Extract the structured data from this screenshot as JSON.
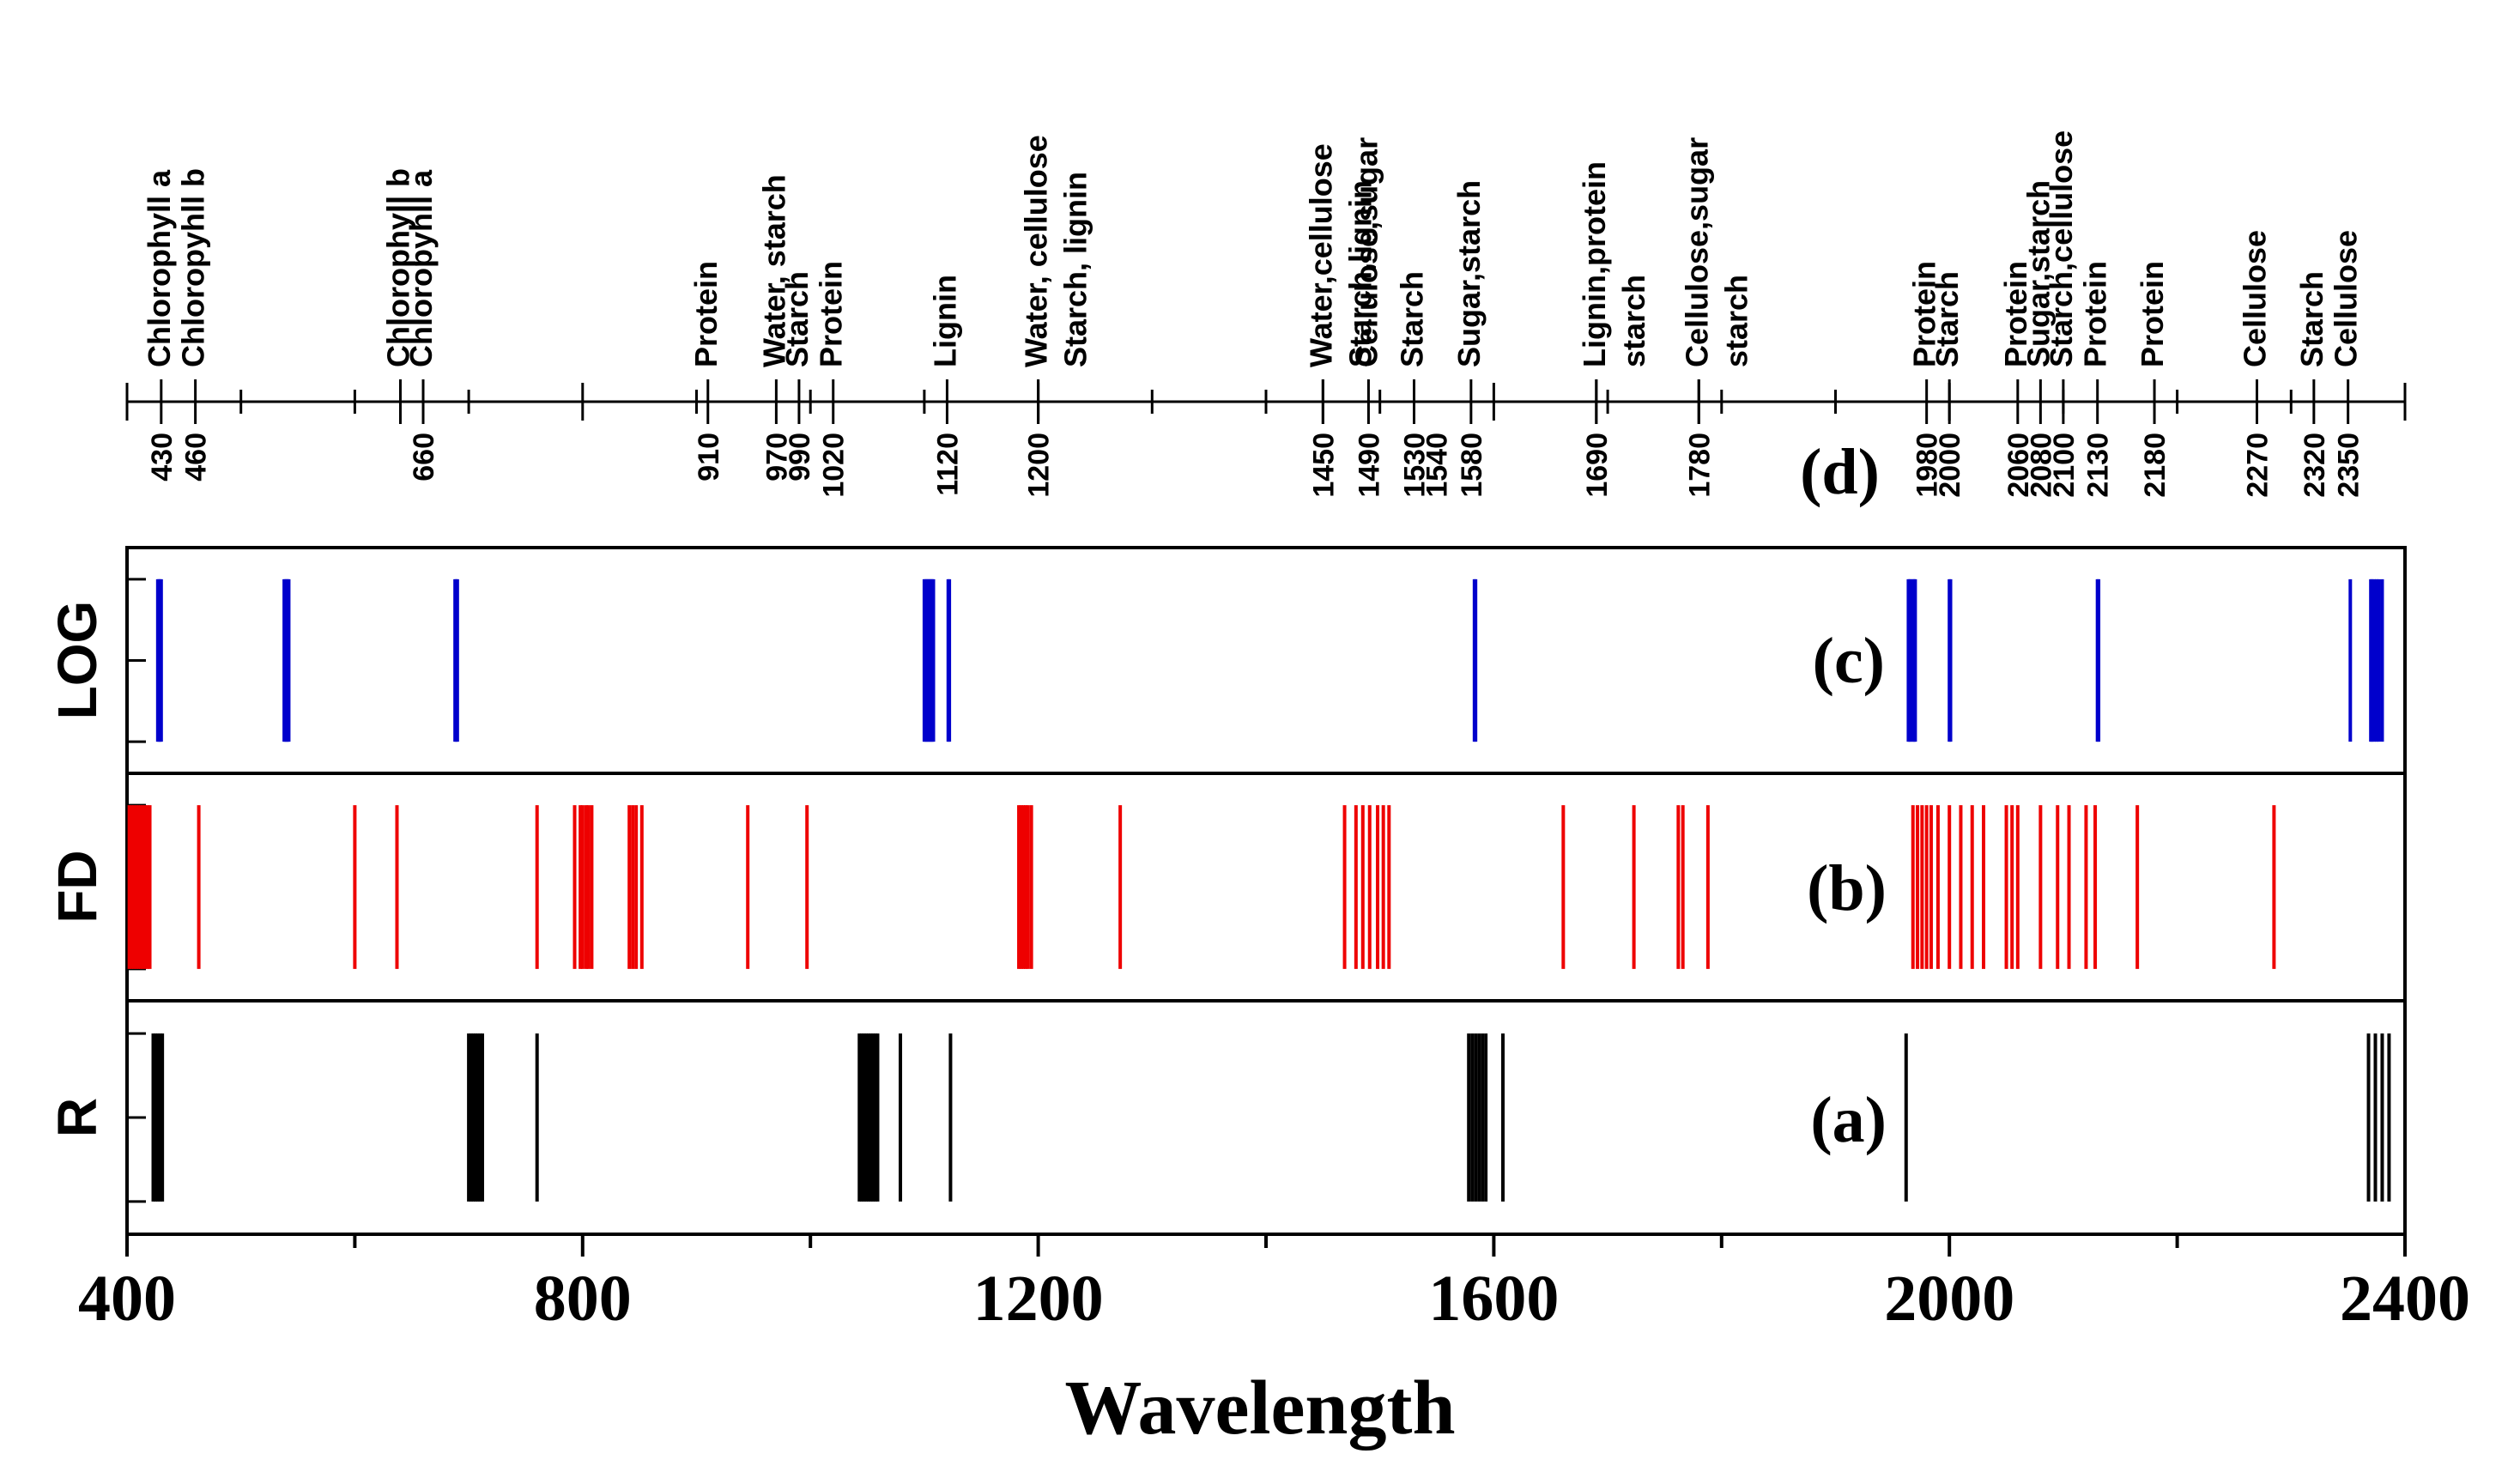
{
  "chart_data": {
    "type": "wavelength-band-plot",
    "xlim": [
      400,
      2400
    ],
    "xlabel": "Wavelength",
    "x_ticks": [
      400,
      800,
      1200,
      1600,
      2000,
      2400
    ],
    "annotations_panel": {
      "tag": "(d)",
      "entries": [
        {
          "wl": 430,
          "label": "Chlorophyll a"
        },
        {
          "wl": 460,
          "label": "Chloropyhll b"
        },
        {
          "wl": 640,
          "label": "Chlorophyll b"
        },
        {
          "wl": 660,
          "label": "Chloropyhll a"
        },
        {
          "wl": 910,
          "label": "Protein"
        },
        {
          "wl": 970,
          "label": "Water, starch"
        },
        {
          "wl": 990,
          "label": "Starch"
        },
        {
          "wl": 1020,
          "label": "Protein"
        },
        {
          "wl": 1120,
          "label": "Lignin"
        },
        {
          "wl": 1200,
          "label": "Water, cellulose"
        },
        {
          "wl": 1200,
          "label": "Starch, lignin"
        },
        {
          "wl": 1450,
          "label": "Water,cellulose"
        },
        {
          "wl": 1450,
          "label": "Starch,lignin"
        },
        {
          "wl": 1490,
          "label": "Cellulose,sugar"
        },
        {
          "wl": 1530,
          "label": "Starch"
        },
        {
          "wl": 1580,
          "label": "Sugar,starch"
        },
        {
          "wl": 1690,
          "label": "Lignin,protein"
        },
        {
          "wl": 1690,
          "label": "starch"
        },
        {
          "wl": 1780,
          "label": "Cellulose,sugar"
        },
        {
          "wl": 1780,
          "label": "starch"
        },
        {
          "wl": 1980,
          "label": "Protein"
        },
        {
          "wl": 2000,
          "label": "Starch"
        },
        {
          "wl": 2060,
          "label": "Protein"
        },
        {
          "wl": 2080,
          "label": "Sugar,starch"
        },
        {
          "wl": 2100,
          "label": "Starch,cellulose"
        },
        {
          "wl": 2130,
          "label": "Protein"
        },
        {
          "wl": 2180,
          "label": "Protein"
        },
        {
          "wl": 2270,
          "label": "Cellulose"
        },
        {
          "wl": 2320,
          "label": "Starch"
        },
        {
          "wl": 2350,
          "label": "Cellulose"
        }
      ],
      "wavelength_labels": [
        "430",
        "460",
        "660",
        "910",
        "970",
        "990",
        "1020",
        "1120",
        "1200",
        "1450",
        "1490",
        "1530",
        "1540",
        "1580",
        "1690",
        "1780",
        "1980",
        "2000",
        "2060",
        "2080",
        "2100",
        "2130",
        "2180",
        "2270",
        "2320",
        "2350"
      ]
    },
    "series": [
      {
        "name": "LOG",
        "tag": "(c)",
        "color": "#0000cc",
        "bands": [
          427,
          428,
          429,
          430,
          538,
          539,
          540,
          541,
          542,
          688,
          689,
          690,
          1100,
          1101,
          1102,
          1103,
          1104,
          1105,
          1106,
          1107,
          1108,
          1121,
          1122,
          1583,
          1584,
          1964,
          1965,
          1966,
          1968,
          1969,
          1970,
          2000,
          2001,
          2130,
          2131,
          2352,
          2370,
          2371,
          2373,
          2375,
          2377,
          2380
        ]
      },
      {
        "name": "FD",
        "tag": "(b)",
        "color": "#ee0000",
        "bands": [
          402,
          404,
          406,
          408,
          410,
          412,
          414,
          416,
          418,
          420,
          463,
          600,
          637,
          760,
          793,
          798,
          800,
          803,
          805,
          808,
          841,
          844,
          847,
          852,
          945,
          997,
          1183,
          1185,
          1187,
          1189,
          1191,
          1194,
          1272,
          1469,
          1479,
          1485,
          1491,
          1498,
          1503,
          1508,
          1661,
          1723,
          1762,
          1766,
          1788,
          1968,
          1972,
          1976,
          1980,
          1984,
          1990,
          2000,
          2010,
          2020,
          2030,
          2050,
          2055,
          2060,
          2080,
          2095,
          2105,
          2120,
          2128,
          2165,
          2285
        ]
      },
      {
        "name": "R",
        "tag": "(a)",
        "color": "#000000",
        "bands": [
          423,
          425,
          427,
          429,
          431,
          700,
          702,
          704,
          706,
          708,
          710,
          712,
          760,
          1043,
          1045,
          1047,
          1049,
          1051,
          1053,
          1055,
          1057,
          1059,
          1079,
          1123,
          1578,
          1581,
          1584,
          1587,
          1590,
          1593,
          1608,
          1962,
          2368,
          2374,
          2380,
          2386
        ]
      }
    ]
  }
}
